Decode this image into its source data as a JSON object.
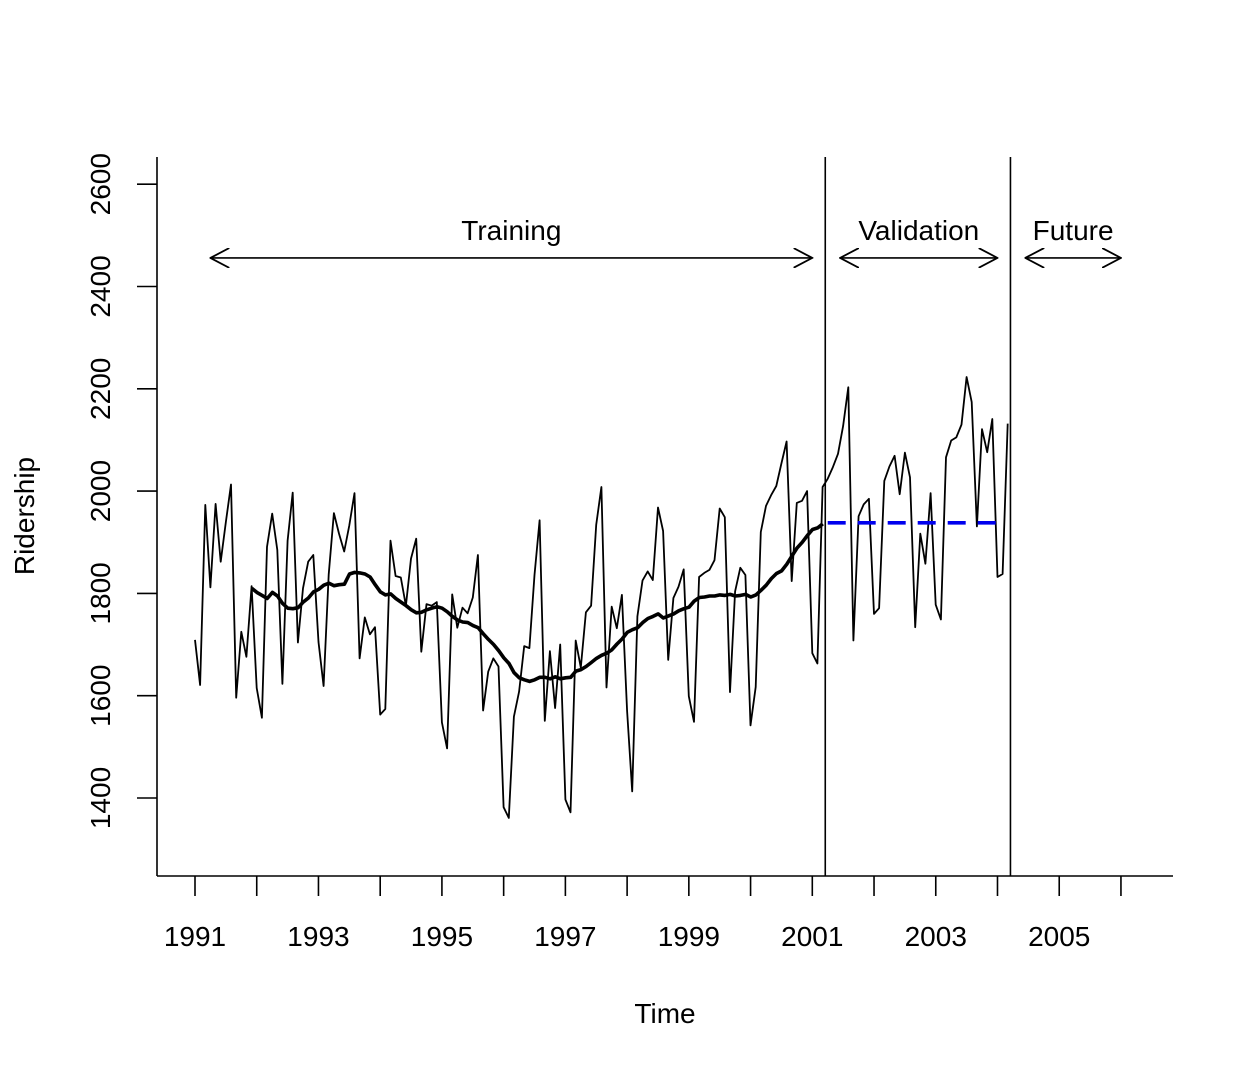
{
  "chart_data": {
    "type": "line",
    "title": "",
    "xlabel": "Time",
    "ylabel": "Ridership",
    "xlim": [
      1990.4,
      2006.85
    ],
    "ylim": [
      1250,
      2650
    ],
    "x_ticks": [
      1991,
      1992,
      1993,
      1994,
      1995,
      1996,
      1997,
      1998,
      1999,
      2000,
      2001,
      2002,
      2003,
      2004,
      2005,
      2006
    ],
    "x_tick_labels": [
      "1991",
      "",
      "1993",
      "",
      "1995",
      "",
      "1997",
      "",
      "1999",
      "",
      "2001",
      "",
      "2003",
      "",
      "2005",
      ""
    ],
    "y_ticks": [
      1400,
      1600,
      1800,
      2000,
      2200,
      2400,
      2600
    ],
    "y_tick_labels": [
      "1400",
      "1600",
      "1800",
      "2000",
      "2200",
      "2400",
      "2600"
    ],
    "grid": false,
    "legend": "none",
    "vlines": [
      2001.21,
      2004.21
    ],
    "annotations": [
      {
        "label": "Training",
        "x_from": 1991.25,
        "x_to": 2001.0,
        "y": 2450
      },
      {
        "label": "Validation",
        "x_from": 2001.45,
        "x_to": 2004.0,
        "y": 2450
      },
      {
        "label": "Future",
        "x_from": 2004.45,
        "x_to": 2006.0,
        "y": 2450
      }
    ],
    "series": [
      {
        "style": "thin-black",
        "color": "#000000",
        "x_start": 1991.0,
        "x_step": 0.08333,
        "values": [
          1709,
          1621,
          1973,
          1812,
          1975,
          1862,
          1940,
          2013,
          1596,
          1725,
          1676,
          1814,
          1615,
          1557,
          1891,
          1956,
          1885,
          1623,
          1903,
          1997,
          1704,
          1810,
          1862,
          1875,
          1705,
          1619,
          1837,
          1957,
          1917,
          1882,
          1933,
          1996,
          1673,
          1753,
          1720,
          1734,
          1563,
          1574,
          1903,
          1834,
          1831,
          1776,
          1868,
          1907,
          1686,
          1779,
          1776,
          1783,
          1548,
          1497,
          1798,
          1733,
          1772,
          1761,
          1792,
          1875,
          1571,
          1647,
          1673,
          1657,
          1382,
          1361,
          1559,
          1608,
          1697,
          1693,
          1836,
          1943,
          1551,
          1687,
          1576,
          1700,
          1397,
          1372,
          1708,
          1655,
          1763,
          1776,
          1934,
          2008,
          1616,
          1774,
          1732,
          1797,
          1570,
          1413,
          1755,
          1825,
          1843,
          1826,
          1968,
          1922,
          1670,
          1791,
          1813,
          1847,
          1599,
          1549,
          1832,
          1840,
          1846,
          1865,
          1966,
          1949,
          1607,
          1804,
          1850,
          1836,
          1542,
          1617,
          1920,
          1971,
          1992,
          2010,
          2054,
          2097,
          1824,
          1977,
          1981,
          2000,
          1683,
          1663,
          2008,
          2024,
          2047,
          2073,
          2127,
          2203,
          1708,
          1951,
          1974,
          1985,
          1760,
          1771,
          2020,
          2048,
          2069,
          1994,
          2075,
          2027,
          1734,
          1917,
          1858,
          1996,
          1778,
          1749,
          2066,
          2099,
          2105,
          2130,
          2223,
          2174,
          1931,
          2121,
          2076,
          2141,
          1832,
          1838,
          2132
        ]
      },
      {
        "style": "thick-black",
        "color": "#000000",
        "x_start": 1991.92,
        "x_step": 0.08333,
        "values": [
          1810,
          1802,
          1796,
          1790,
          1802,
          1795,
          1780,
          1771,
          1770,
          1772,
          1783,
          1791,
          1803,
          1808,
          1816,
          1820,
          1815,
          1817,
          1818,
          1838,
          1841,
          1840,
          1838,
          1832,
          1817,
          1803,
          1797,
          1799,
          1790,
          1783,
          1776,
          1768,
          1762,
          1763,
          1768,
          1771,
          1774,
          1771,
          1764,
          1755,
          1748,
          1744,
          1743,
          1737,
          1733,
          1721,
          1710,
          1700,
          1688,
          1674,
          1663,
          1645,
          1635,
          1631,
          1628,
          1631,
          1636,
          1636,
          1633,
          1637,
          1633,
          1635,
          1636,
          1648,
          1651,
          1657,
          1665,
          1673,
          1679,
          1683,
          1690,
          1701,
          1711,
          1724,
          1729,
          1733,
          1743,
          1751,
          1755,
          1760,
          1752,
          1756,
          1760,
          1766,
          1770,
          1773,
          1785,
          1792,
          1793,
          1795,
          1795,
          1797,
          1796,
          1798,
          1795,
          1796,
          1798,
          1793,
          1797,
          1806,
          1816,
          1829,
          1839,
          1844,
          1857,
          1873,
          1889,
          1900,
          1913,
          1925,
          1928,
          1936
        ]
      },
      {
        "style": "dashed-blue",
        "color": "#0000ee",
        "x_start": 2001.25,
        "x_step": 2.85,
        "values": [
          1938,
          1938
        ]
      }
    ]
  }
}
